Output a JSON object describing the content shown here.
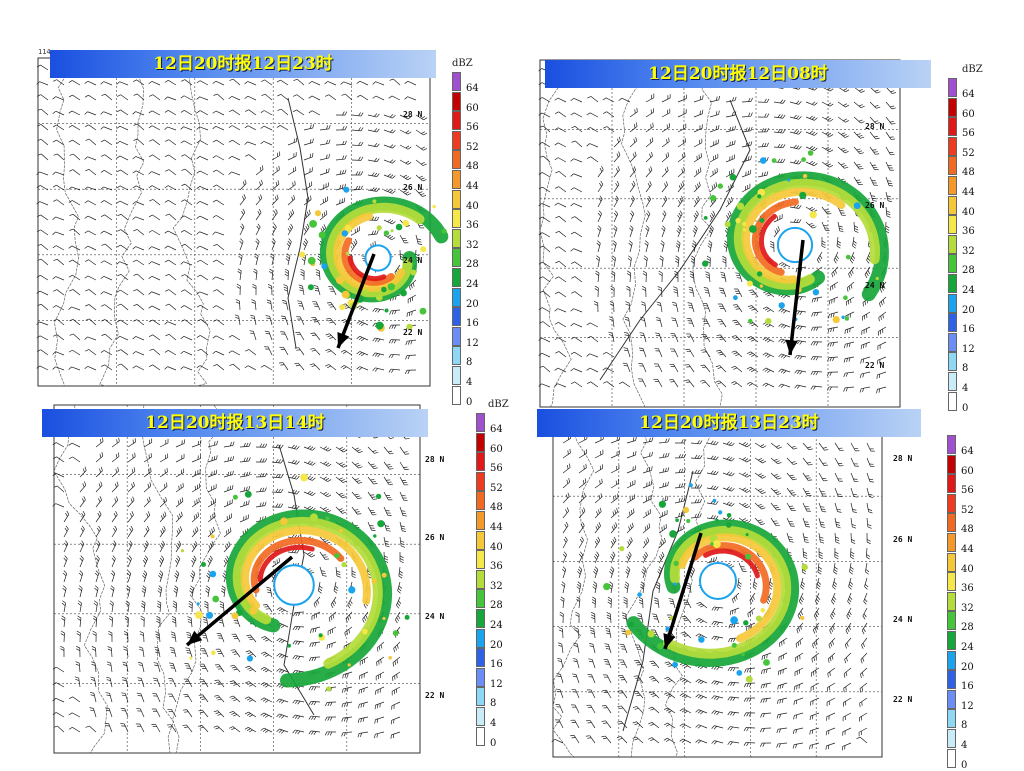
{
  "panels": [
    {
      "id": "p1",
      "title": "12日20时报12日23时",
      "lon_label": "114",
      "latitudes": [
        "28 N",
        "26 N",
        "24 N",
        "22 N"
      ]
    },
    {
      "id": "p2",
      "title": "12日20时报12日08时",
      "lon_label": "",
      "latitudes": [
        "28 N",
        "26 N",
        "24 N",
        "22 N"
      ]
    },
    {
      "id": "p3",
      "title": "12日20时报13日14时",
      "lon_label": "",
      "latitudes": [
        "28 N",
        "26 N",
        "24 N",
        "22 N"
      ]
    },
    {
      "id": "p4",
      "title": "12日20时报13日23时",
      "lon_label": "",
      "latitudes": [
        "28 N",
        "26 N",
        "24 N",
        "22 N"
      ]
    }
  ],
  "color_scale": {
    "unit": "dBZ",
    "levels": [
      "64",
      "60",
      "56",
      "52",
      "48",
      "44",
      "40",
      "36",
      "32",
      "28",
      "24",
      "20",
      "16",
      "12",
      "8",
      "4",
      "0"
    ],
    "colors": [
      "#a04fcf",
      "#c40000",
      "#e01818",
      "#ee3a1e",
      "#f26a22",
      "#f49a2a",
      "#f5c83a",
      "#f5e64a",
      "#b4dc3a",
      "#46c43a",
      "#16a63a",
      "#1aa4ee",
      "#2d62e6",
      "#6a8ef5",
      "#8fd8f5",
      "#c9ecf8",
      "#ffffff"
    ]
  },
  "legend_icon": "color-scale-icon",
  "wind_icon": "wind-barb-icon",
  "track_icon": "storm-track-arrow-icon"
}
